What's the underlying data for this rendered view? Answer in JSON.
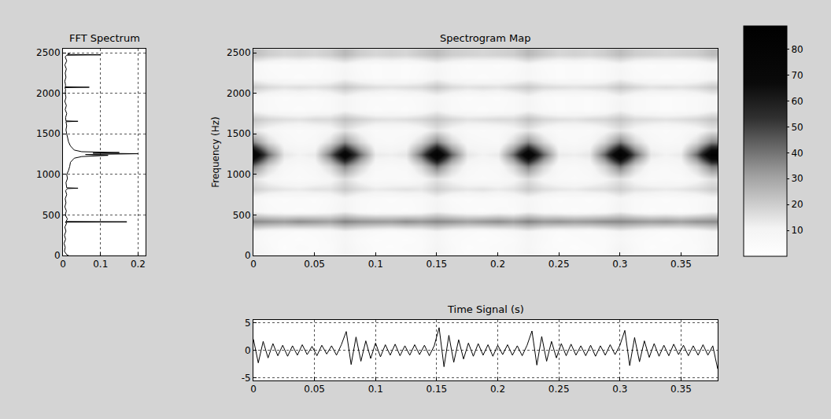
{
  "chart_data": [
    {
      "type": "line",
      "title": "FFT Spectrum",
      "color": "#000000",
      "grid": true,
      "x": [
        0.015,
        0.01,
        0.004,
        0.006,
        0.003,
        0.007,
        0.004,
        0.008,
        0.005,
        0.01,
        0.006,
        0.17,
        0.008,
        0.012,
        0.006,
        0.009,
        0.005,
        0.008,
        0.006,
        0.01,
        0.007,
        0.012,
        0.04,
        0.01,
        0.008,
        0.012,
        0.01,
        0.015,
        0.018,
        0.02,
        0.03,
        0.05,
        0.12,
        0.06,
        0.2,
        0.08,
        0.15,
        0.05,
        0.03,
        0.02,
        0.015,
        0.012,
        0.01,
        0.008,
        0.01,
        0.008,
        0.04,
        0.008,
        0.007,
        0.01,
        0.006,
        0.009,
        0.005,
        0.008,
        0.006,
        0.007,
        0.005,
        0.07,
        0.006,
        0.007,
        0.005,
        0.008,
        0.006,
        0.009,
        0.005,
        0.01,
        0.006,
        0.01,
        0.1,
        0.012,
        0.02
      ],
      "y": [
        0,
        10,
        50,
        100,
        150,
        200,
        250,
        300,
        350,
        400,
        410,
        415,
        420,
        450,
        500,
        550,
        600,
        650,
        700,
        750,
        800,
        825,
        830,
        835,
        900,
        950,
        1000,
        1050,
        1100,
        1150,
        1200,
        1220,
        1235,
        1245,
        1255,
        1262,
        1270,
        1280,
        1300,
        1350,
        1400,
        1450,
        1500,
        1550,
        1600,
        1650,
        1655,
        1660,
        1700,
        1750,
        1800,
        1850,
        1900,
        1950,
        2000,
        2050,
        2070,
        2075,
        2080,
        2100,
        2150,
        2200,
        2250,
        2300,
        2350,
        2400,
        2450,
        2470,
        2475,
        2480,
        2500
      ],
      "xlim": [
        0,
        0.22
      ],
      "xticks": [
        0,
        0.1,
        0.2
      ],
      "ylim": [
        0,
        2550
      ],
      "yticks": [
        0,
        500,
        1000,
        1500,
        2000,
        2500
      ]
    },
    {
      "type": "heatmap",
      "title": "Spectrogram Map",
      "y_label": "Frequency (Hz)",
      "grid": false,
      "x": [
        0,
        0.0125,
        0.025,
        0.0375,
        0.05,
        0.0625,
        0.075,
        0.0875,
        0.1,
        0.1125,
        0.125,
        0.1375,
        0.15,
        0.1625,
        0.175,
        0.1875,
        0.2,
        0.2125,
        0.225,
        0.2375,
        0.25,
        0.2625,
        0.275,
        0.2875,
        0.3,
        0.3125,
        0.325,
        0.3375,
        0.35,
        0.3625,
        0.375
      ],
      "y": [
        0,
        100,
        200,
        300,
        420,
        550,
        700,
        820,
        950,
        1100,
        1250,
        1400,
        1550,
        1680,
        1800,
        1950,
        2080,
        2200,
        2350,
        2480
      ],
      "cells": [
        [
          12,
          7,
          4,
          3,
          5,
          6,
          11,
          7,
          4,
          5,
          3,
          6,
          12,
          6,
          4,
          3,
          5,
          6,
          11,
          7,
          5,
          4,
          3,
          6,
          12,
          6,
          4,
          5,
          3,
          6,
          11
        ],
        [
          9,
          6,
          3,
          5,
          4,
          5,
          10,
          6,
          4,
          3,
          5,
          5,
          10,
          6,
          3,
          4,
          5,
          6,
          9,
          5,
          4,
          3,
          4,
          5,
          10,
          6,
          3,
          4,
          5,
          5,
          9
        ],
        [
          8,
          5,
          4,
          3,
          4,
          6,
          9,
          5,
          3,
          4,
          3,
          5,
          9,
          5,
          4,
          3,
          4,
          5,
          9,
          6,
          3,
          4,
          5,
          5,
          8,
          5,
          4,
          3,
          4,
          6,
          9
        ],
        [
          9,
          6,
          5,
          4,
          5,
          6,
          10,
          7,
          5,
          4,
          5,
          6,
          10,
          6,
          5,
          4,
          5,
          7,
          10,
          6,
          4,
          5,
          4,
          6,
          10,
          7,
          5,
          4,
          5,
          6,
          10
        ],
        [
          36,
          34,
          32,
          35,
          33,
          31,
          37,
          34,
          33,
          32,
          35,
          33,
          36,
          34,
          31,
          33,
          35,
          32,
          37,
          33,
          34,
          32,
          33,
          35,
          36,
          34,
          32,
          33,
          31,
          34,
          35
        ],
        [
          10,
          6,
          5,
          4,
          5,
          7,
          11,
          6,
          4,
          5,
          4,
          6,
          11,
          7,
          5,
          4,
          6,
          5,
          10,
          6,
          5,
          4,
          5,
          6,
          11,
          6,
          4,
          5,
          4,
          6,
          10
        ],
        [
          9,
          5,
          4,
          5,
          4,
          6,
          10,
          6,
          5,
          4,
          5,
          6,
          10,
          5,
          4,
          5,
          4,
          6,
          9,
          6,
          4,
          5,
          4,
          5,
          10,
          6,
          5,
          4,
          5,
          6,
          9
        ],
        [
          20,
          16,
          14,
          13,
          15,
          15,
          21,
          16,
          13,
          14,
          15,
          14,
          20,
          16,
          14,
          15,
          13,
          15,
          21,
          16,
          14,
          13,
          15,
          16,
          20,
          15,
          14,
          13,
          14,
          16,
          20
        ],
        [
          15,
          9,
          6,
          5,
          6,
          9,
          16,
          9,
          5,
          6,
          5,
          9,
          15,
          10,
          6,
          5,
          6,
          9,
          16,
          9,
          6,
          5,
          6,
          10,
          15,
          9,
          5,
          6,
          5,
          9,
          15
        ],
        [
          38,
          18,
          8,
          6,
          8,
          17,
          36,
          19,
          7,
          6,
          7,
          18,
          40,
          19,
          8,
          6,
          7,
          18,
          38,
          18,
          7,
          6,
          8,
          19,
          40,
          18,
          7,
          6,
          8,
          18,
          38
        ],
        [
          84,
          42,
          14,
          11,
          13,
          40,
          80,
          41,
          13,
          12,
          14,
          42,
          86,
          43,
          14,
          11,
          13,
          41,
          83,
          42,
          13,
          12,
          14,
          43,
          88,
          44,
          14,
          11,
          13,
          42,
          85
        ],
        [
          36,
          17,
          8,
          6,
          7,
          16,
          34,
          17,
          7,
          6,
          8,
          18,
          37,
          18,
          8,
          7,
          6,
          17,
          35,
          17,
          7,
          6,
          8,
          18,
          38,
          18,
          8,
          6,
          7,
          17,
          36
        ],
        [
          14,
          9,
          6,
          5,
          6,
          8,
          15,
          9,
          5,
          6,
          5,
          8,
          15,
          9,
          6,
          5,
          6,
          9,
          14,
          8,
          5,
          6,
          5,
          9,
          15,
          9,
          6,
          5,
          6,
          8,
          14
        ],
        [
          22,
          18,
          16,
          15,
          17,
          17,
          23,
          19,
          16,
          15,
          16,
          18,
          22,
          18,
          15,
          16,
          17,
          17,
          23,
          18,
          16,
          15,
          17,
          18,
          22,
          17,
          16,
          15,
          16,
          18,
          22
        ],
        [
          10,
          6,
          5,
          4,
          5,
          6,
          10,
          6,
          4,
          5,
          4,
          6,
          11,
          6,
          5,
          4,
          5,
          6,
          10,
          6,
          4,
          5,
          4,
          6,
          11,
          6,
          5,
          4,
          5,
          6,
          10
        ],
        [
          9,
          6,
          4,
          5,
          4,
          6,
          10,
          6,
          5,
          4,
          5,
          6,
          9,
          6,
          4,
          5,
          4,
          6,
          10,
          5,
          4,
          5,
          4,
          6,
          10,
          6,
          5,
          4,
          5,
          6,
          9
        ],
        [
          21,
          17,
          15,
          16,
          15,
          17,
          22,
          18,
          16,
          15,
          16,
          17,
          22,
          17,
          15,
          16,
          15,
          18,
          21,
          17,
          16,
          15,
          16,
          17,
          22,
          18,
          15,
          16,
          15,
          17,
          21
        ],
        [
          9,
          6,
          5,
          4,
          5,
          6,
          10,
          6,
          4,
          5,
          4,
          6,
          10,
          6,
          5,
          4,
          5,
          6,
          9,
          6,
          4,
          5,
          4,
          6,
          10,
          6,
          5,
          4,
          5,
          6,
          9
        ],
        [
          8,
          5,
          4,
          5,
          4,
          6,
          9,
          5,
          4,
          5,
          4,
          5,
          9,
          6,
          4,
          5,
          4,
          5,
          9,
          5,
          4,
          5,
          4,
          6,
          9,
          5,
          4,
          5,
          4,
          5,
          8
        ],
        [
          24,
          20,
          18,
          19,
          18,
          20,
          25,
          20,
          18,
          19,
          18,
          21,
          24,
          20,
          19,
          18,
          19,
          20,
          25,
          21,
          18,
          19,
          18,
          20,
          24,
          20,
          19,
          18,
          19,
          20,
          24
        ]
      ],
      "xlim": [
        0,
        0.38
      ],
      "xticks": [
        0,
        0.05,
        0.1,
        0.15,
        0.2,
        0.25,
        0.3,
        0.35
      ],
      "ylim": [
        0,
        2550
      ],
      "yticks": [
        0,
        500,
        1000,
        1500,
        2000,
        2500
      ],
      "zlim": [
        0,
        89
      ],
      "zticks": [
        10,
        20,
        30,
        40,
        50,
        60,
        70,
        80
      ]
    },
    {
      "type": "line",
      "title": "Time Signal (s)",
      "color": "#000000",
      "grid": true,
      "x": [
        0,
        0.004,
        0.008,
        0.012,
        0.016,
        0.02,
        0.024,
        0.028,
        0.032,
        0.036,
        0.04,
        0.044,
        0.048,
        0.052,
        0.056,
        0.06,
        0.064,
        0.068,
        0.072,
        0.076,
        0.08,
        0.084,
        0.088,
        0.092,
        0.096,
        0.1,
        0.104,
        0.108,
        0.112,
        0.116,
        0.12,
        0.124,
        0.128,
        0.132,
        0.136,
        0.14,
        0.144,
        0.148,
        0.152,
        0.156,
        0.16,
        0.164,
        0.168,
        0.172,
        0.176,
        0.18,
        0.184,
        0.188,
        0.192,
        0.196,
        0.2,
        0.204,
        0.208,
        0.212,
        0.216,
        0.22,
        0.224,
        0.228,
        0.232,
        0.236,
        0.24,
        0.244,
        0.248,
        0.252,
        0.256,
        0.26,
        0.264,
        0.268,
        0.272,
        0.276,
        0.28,
        0.284,
        0.288,
        0.292,
        0.296,
        0.3,
        0.304,
        0.308,
        0.312,
        0.316,
        0.32,
        0.324,
        0.328,
        0.332,
        0.336,
        0.34,
        0.344,
        0.348,
        0.352,
        0.356,
        0.36,
        0.364,
        0.368,
        0.372,
        0.376,
        0.38
      ],
      "values": [
        2.0,
        -2.3,
        1.6,
        -1.4,
        1.2,
        -1.0,
        0.9,
        -1.1,
        0.8,
        -0.9,
        1.0,
        -0.8,
        0.7,
        -1.0,
        0.9,
        -0.7,
        0.8,
        -0.9,
        1.0,
        3.4,
        -2.6,
        2.4,
        -2.0,
        1.7,
        -1.5,
        1.3,
        -1.2,
        1.0,
        -0.9,
        1.1,
        -1.0,
        0.8,
        -0.9,
        1.0,
        -0.8,
        0.9,
        -1.0,
        0.8,
        4.1,
        -3.0,
        2.7,
        -2.2,
        1.9,
        -1.6,
        1.3,
        -1.1,
        1.2,
        -0.9,
        1.0,
        -1.1,
        0.9,
        -0.8,
        1.0,
        -0.9,
        0.8,
        -1.0,
        0.9,
        3.5,
        -2.7,
        2.5,
        -2.0,
        1.6,
        -1.4,
        1.2,
        -1.0,
        1.1,
        -0.9,
        0.8,
        -1.0,
        0.9,
        -1.1,
        0.8,
        -0.9,
        1.0,
        -0.8,
        0.9,
        3.6,
        -2.8,
        2.3,
        -2.1,
        1.7,
        -1.3,
        1.2,
        -1.1,
        0.9,
        -1.0,
        1.1,
        -0.8,
        0.9,
        -1.0,
        0.8,
        -0.9,
        1.0,
        -0.9,
        0.8,
        -3.4
      ],
      "xlim": [
        0,
        0.38
      ],
      "xticks": [
        0,
        0.05,
        0.1,
        0.15,
        0.2,
        0.25,
        0.3,
        0.35
      ],
      "ylim": [
        -5.5,
        5.5
      ],
      "yticks": [
        -5,
        0,
        5
      ]
    }
  ]
}
